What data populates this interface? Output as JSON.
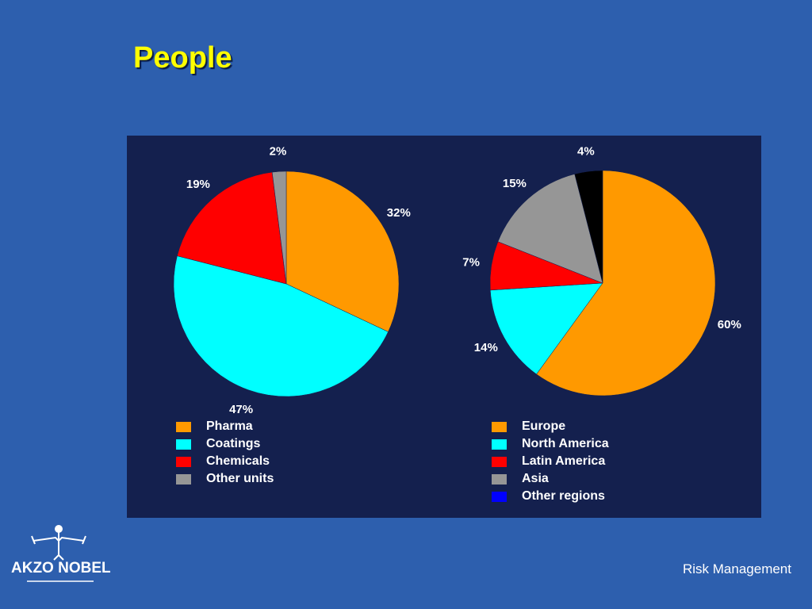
{
  "slide": {
    "title": "People",
    "footer": "Risk Management",
    "logo_text": "AKZO NOBEL"
  },
  "colors": {
    "background": "#2d5fae",
    "panel": "#14204e",
    "title": "#ffff00"
  },
  "chart_data": [
    {
      "type": "pie",
      "title": "",
      "slices": [
        {
          "label": "Pharma",
          "value": 32,
          "display": "32%",
          "color": "#ff9900"
        },
        {
          "label": "Coatings",
          "value": 47,
          "display": "47%",
          "color": "#00ffff"
        },
        {
          "label": "Chemicals",
          "value": 19,
          "display": "19%",
          "color": "#ff0000"
        },
        {
          "label": "Other units",
          "value": 2,
          "display": "2%",
          "color": "#969696"
        }
      ],
      "legend_placement": "bottom"
    },
    {
      "type": "pie",
      "title": "",
      "slices": [
        {
          "label": "Europe",
          "value": 60,
          "display": "60%",
          "color": "#ff9900"
        },
        {
          "label": "North America",
          "value": 14,
          "display": "14%",
          "color": "#00ffff"
        },
        {
          "label": "Latin America",
          "value": 7,
          "display": "7%",
          "color": "#ff0000"
        },
        {
          "label": "Asia",
          "value": 15,
          "display": "15%",
          "color": "#969696"
        },
        {
          "label": "Other regions",
          "value": 4,
          "display": "4%",
          "color": "#000000"
        }
      ],
      "legend_colors": [
        "#ff9900",
        "#00ffff",
        "#ff0000",
        "#969696",
        "#0000ff"
      ],
      "legend_placement": "bottom"
    }
  ]
}
